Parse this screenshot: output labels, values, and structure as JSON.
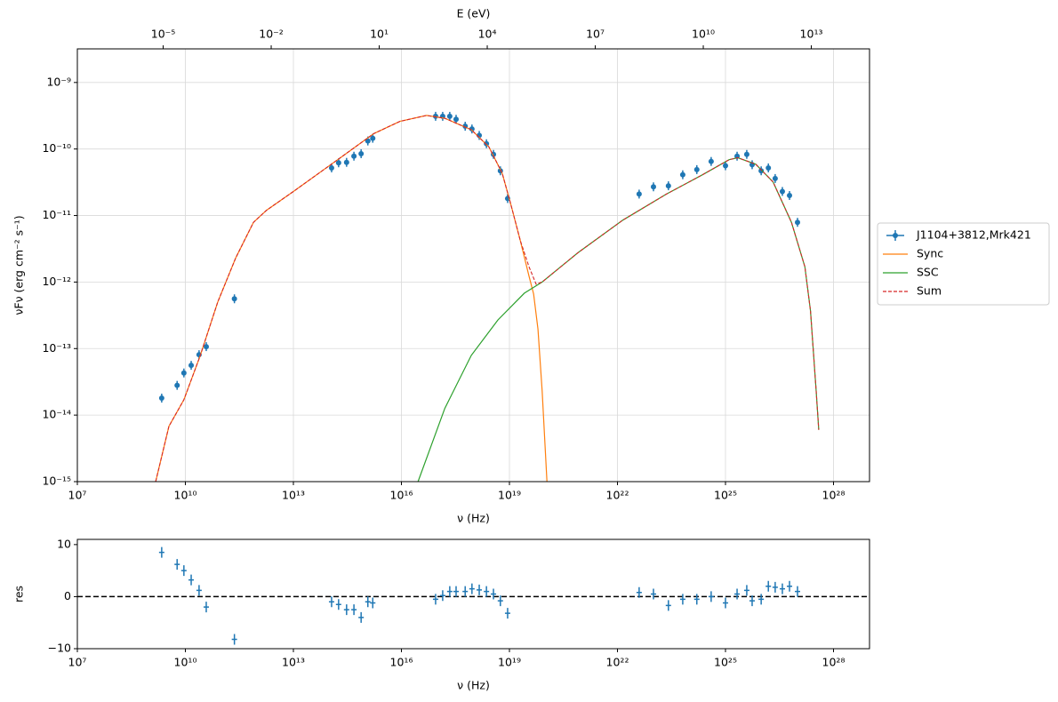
{
  "chart_data": [
    {
      "type": "line",
      "xscale": "log",
      "yscale": "log",
      "grid": true,
      "legend": "outside right",
      "xlabel": "ν  (Hz)",
      "ylabel": "νFν  (erg cm⁻²  s⁻¹)",
      "x2label": "E (eV)",
      "xlim": [
        10000000.0,
        1e+29
      ],
      "ylim": [
        1e-15,
        3.2e-09
      ],
      "x2lim": [
        4.136e-08,
        413600000000000.0
      ],
      "xticks": [
        {
          "value": 10000000.0,
          "label": "10⁷"
        },
        {
          "value": 10000000000.0,
          "label": "10¹⁰"
        },
        {
          "value": 10000000000000.0,
          "label": "10¹³"
        },
        {
          "value": 1e+16,
          "label": "10¹⁶"
        },
        {
          "value": 1e+19,
          "label": "10¹⁹"
        },
        {
          "value": 1e+22,
          "label": "10²²"
        },
        {
          "value": 1e+25,
          "label": "10²⁵"
        },
        {
          "value": 1e+28,
          "label": "10²⁸"
        }
      ],
      "yticks": [
        {
          "value": 1e-15,
          "label": "10⁻¹⁵"
        },
        {
          "value": 1e-14,
          "label": "10⁻¹⁴"
        },
        {
          "value": 1e-13,
          "label": "10⁻¹³"
        },
        {
          "value": 1e-12,
          "label": "10⁻¹²"
        },
        {
          "value": 1e-11,
          "label": "10⁻¹¹"
        },
        {
          "value": 1e-10,
          "label": "10⁻¹⁰"
        },
        {
          "value": 1e-09,
          "label": "10⁻⁹"
        }
      ],
      "x2ticks": [
        {
          "value": 1e-05,
          "label": "10⁻⁵"
        },
        {
          "value": 0.01,
          "label": "10⁻²"
        },
        {
          "value": 10,
          "label": "10¹"
        },
        {
          "value": 10000.0,
          "label": "10⁴"
        },
        {
          "value": 10000000.0,
          "label": "10⁷"
        },
        {
          "value": 10000000000.0,
          "label": "10¹⁰"
        },
        {
          "value": 10000000000000.0,
          "label": "10¹³"
        }
      ],
      "series": [
        {
          "name": "J1104+3812,Mrk421",
          "color": "#1f77b4",
          "style": "points",
          "x": [
            2200000000.0,
            5900000000.0,
            9100000000.0,
            14500000000.0,
            24000000000.0,
            38000000000.0,
            230000000000.0,
            115000000000000.0,
            180000000000000.0,
            300000000000000.0,
            480000000000000.0,
            760000000000000.0,
            1170000000000000.0,
            1600000000000000.0,
            8.9e+16,
            1.4e+17,
            2.2e+17,
            3.3e+17,
            5.9e+17,
            9.1e+17,
            1.45e+18,
            2.3e+18,
            3.6e+18,
            5.6e+18,
            8.9e+18,
            4e+22,
            1e+23,
            2.6e+23,
            6.5e+23,
            1.6e+24,
            4e+24,
            1e+25,
            2.1e+25,
            3.9e+25,
            5.5e+25,
            9.8e+25,
            1.55e+26,
            2.4e+26,
            3.8e+26,
            6e+26,
            1e+27
          ],
          "values": [
            1.8e-14,
            2.8e-14,
            4.3e-14,
            5.6e-14,
            8.1e-14,
            1.07e-13,
            5.6e-13,
            5.2e-11,
            6.2e-11,
            6.3e-11,
            7.8e-11,
            8.5e-11,
            1.32e-10,
            1.45e-10,
            3.1e-10,
            3.1e-10,
            3.1e-10,
            2.8e-10,
            2.2e-10,
            2e-10,
            1.6e-10,
            1.2e-10,
            8.3e-11,
            4.7e-11,
            1.8e-11,
            2.1e-11,
            2.7e-11,
            2.8e-11,
            4.1e-11,
            4.9e-11,
            6.5e-11,
            5.6e-11,
            7.8e-11,
            8.3e-11,
            5.8e-11,
            4.7e-11,
            5.2e-11,
            3.6e-11,
            2.3e-11,
            2e-11,
            7.9e-12
          ]
        },
        {
          "name": "Sync",
          "color": "#ff7f0e",
          "style": "solid",
          "x": [
            1500000000.0,
            3500000000.0,
            9100000000.0,
            26000000000.0,
            79000000000.0,
            250000000000.0,
            780000000000.0,
            1800000000000.0,
            10000000000000.0,
            170000000000000.0,
            1700000000000000.0,
            9100000000000000.0,
            5e+16,
            1.6e+17,
            8.7e+17,
            2.7e+18,
            6.3e+18,
            1.1e+19,
            2e+19,
            3.5e+19,
            4.7e+19,
            6.2e+19,
            8.1e+19,
            1.1e+20
          ],
          "values": [
            1e-15,
            6.8e-15,
            1.7e-14,
            7.9e-14,
            5e-13,
            2.3e-12,
            7.9e-12,
            1.2e-11,
            2.3e-11,
            6.9e-11,
            1.7e-10,
            2.6e-10,
            3.2e-10,
            2.9e-10,
            1.95e-10,
            1.07e-10,
            4.3e-11,
            1.45e-11,
            4.2e-12,
            1.23e-12,
            6.6e-13,
            1.95e-13,
            2.3e-14,
            1e-15
          ]
        },
        {
          "name": "SSC",
          "color": "#2ca02c",
          "style": "solid",
          "x": [
            2.9e+16,
            1.6e+17,
            8.7e+17,
            4.8e+18,
            2.6e+19,
            8.1e+19,
            7.9e+20,
            1.4e+22,
            2.3e+23,
            2.3e+24,
            1.26e+25,
            2.2e+25,
            6.9e+25,
            2.1e+26,
            6.8e+26,
            1.6e+27,
            2.3e+27,
            3.3e+27,
            3.9e+27
          ],
          "values": [
            1e-15,
            1.26e-14,
            7.9e-14,
            2.7e-13,
            6.8e-13,
            1e-12,
            2.75e-12,
            8.5e-12,
            2.1e-11,
            4.1e-11,
            6.9e-11,
            7.4e-11,
            5.9e-11,
            3.2e-11,
            7.9e-12,
            1.7e-12,
            3.7e-13,
            2.3e-14,
            6e-15
          ]
        },
        {
          "name": "Sum",
          "color": "#d62728",
          "style": "dashed",
          "x": [
            1500000000.0,
            3500000000.0,
            9100000000.0,
            26000000000.0,
            79000000000.0,
            250000000000.0,
            780000000000.0,
            1800000000000.0,
            10000000000000.0,
            170000000000000.0,
            1700000000000000.0,
            9100000000000000.0,
            5e+16,
            1.6e+17,
            8.7e+17,
            2.7e+18,
            6.3e+18,
            1.1e+19,
            2e+19,
            3.5e+19,
            5.5e+19,
            8.1e+19,
            7.9e+20,
            1.4e+22,
            2.3e+23,
            2.3e+24,
            1.26e+25,
            2.2e+25,
            6.9e+25,
            2.1e+26,
            6.8e+26,
            1.6e+27,
            2.3e+27,
            3.3e+27,
            3.9e+27
          ],
          "values": [
            1e-15,
            6.8e-15,
            1.7e-14,
            7.9e-14,
            5e-13,
            2.3e-12,
            7.9e-12,
            1.2e-11,
            2.3e-11,
            6.9e-11,
            1.7e-10,
            2.6e-10,
            3.2e-10,
            2.9e-10,
            1.95e-10,
            1.07e-10,
            4.3e-11,
            1.45e-11,
            4.2e-12,
            1.7e-12,
            9.3e-13,
            1e-12,
            2.75e-12,
            8.5e-12,
            2.1e-11,
            4.1e-11,
            6.9e-11,
            7.4e-11,
            5.9e-11,
            3.2e-11,
            7.9e-12,
            1.7e-12,
            3.7e-13,
            2.3e-14,
            6e-15
          ]
        }
      ]
    },
    {
      "type": "scatter",
      "xscale": "log",
      "grid": false,
      "xlabel": "ν  (Hz)",
      "ylabel": "res",
      "xlim": [
        10000000.0,
        1e+29
      ],
      "ylim": [
        -10,
        11
      ],
      "xticks": [
        {
          "value": 10000000.0,
          "label": "10⁷"
        },
        {
          "value": 10000000000.0,
          "label": "10¹⁰"
        },
        {
          "value": 10000000000000.0,
          "label": "10¹³"
        },
        {
          "value": 1e+16,
          "label": "10¹⁶"
        },
        {
          "value": 1e+19,
          "label": "10¹⁹"
        },
        {
          "value": 1e+22,
          "label": "10²²"
        },
        {
          "value": 1e+25,
          "label": "10²⁵"
        },
        {
          "value": 1e+28,
          "label": "10²⁸"
        }
      ],
      "yticks": [
        {
          "value": -10,
          "label": "−10"
        },
        0,
        10
      ],
      "hline": {
        "y": 0,
        "color": "#000000"
      },
      "series": [
        {
          "color": "#1f77b4",
          "x": [
            2200000000.0,
            5900000000.0,
            9100000000.0,
            14500000000.0,
            24000000000.0,
            38000000000.0,
            230000000000.0,
            115000000000000.0,
            180000000000000.0,
            300000000000000.0,
            480000000000000.0,
            760000000000000.0,
            1170000000000000.0,
            1600000000000000.0,
            8.9e+16,
            1.4e+17,
            2.2e+17,
            3.3e+17,
            5.9e+17,
            9.1e+17,
            1.45e+18,
            2.3e+18,
            3.6e+18,
            5.6e+18,
            8.9e+18,
            4e+22,
            1e+23,
            2.6e+23,
            6.5e+23,
            1.6e+24,
            4e+24,
            1e+25,
            2.1e+25,
            3.9e+25,
            5.5e+25,
            9.8e+25,
            1.55e+26,
            2.4e+26,
            3.8e+26,
            6e+26,
            1e+27
          ],
          "values": [
            8.5,
            6.2,
            5,
            3.2,
            1.2,
            -2,
            -8.2,
            -1,
            -1.5,
            -2.5,
            -2.5,
            -4,
            -1,
            -1.2,
            -0.5,
            0.2,
            1,
            1,
            1,
            1.5,
            1.3,
            1,
            0.5,
            -0.8,
            -3.2,
            0.8,
            0.5,
            -1.7,
            -0.5,
            -0.5,
            0,
            -1.2,
            0.5,
            1.2,
            -0.8,
            -0.5,
            2,
            1.8,
            1.5,
            2,
            1
          ]
        }
      ]
    }
  ]
}
